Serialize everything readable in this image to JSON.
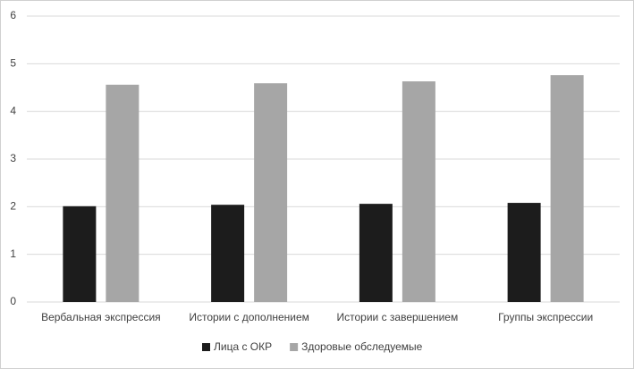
{
  "chart_data": {
    "type": "bar",
    "categories": [
      "Вербальная экспрессия",
      "Истории с дополнением",
      "Истории с завершением",
      "Группы экспрессии"
    ],
    "series": [
      {
        "name": "Лица с ОКР",
        "color": "#1c1c1c",
        "values": [
          2.01,
          2.04,
          2.06,
          2.08
        ]
      },
      {
        "name": "Здоровые обследуемые",
        "color": "#a6a6a6",
        "values": [
          4.56,
          4.59,
          4.63,
          4.76
        ]
      }
    ],
    "ylim": [
      0,
      6
    ],
    "yticks": [
      0,
      1,
      2,
      3,
      4,
      5,
      6
    ],
    "grid": true,
    "legend": "bottom"
  }
}
